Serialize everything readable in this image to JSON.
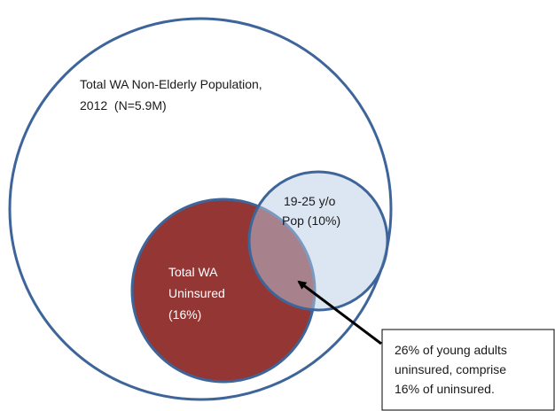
{
  "outer": {
    "lines": [
      "Total WA Non-Elderly Population,",
      "2012  (N=5.9M)"
    ]
  },
  "young_adults": {
    "lines": [
      "19-25 y/o",
      "Pop (10%)"
    ]
  },
  "uninsured": {
    "lines": [
      "Total WA",
      "Uninsured",
      "(16%)"
    ]
  },
  "callout": {
    "lines": [
      "26% of young adults",
      "uninsured, comprise",
      "16% of uninsured."
    ]
  }
}
